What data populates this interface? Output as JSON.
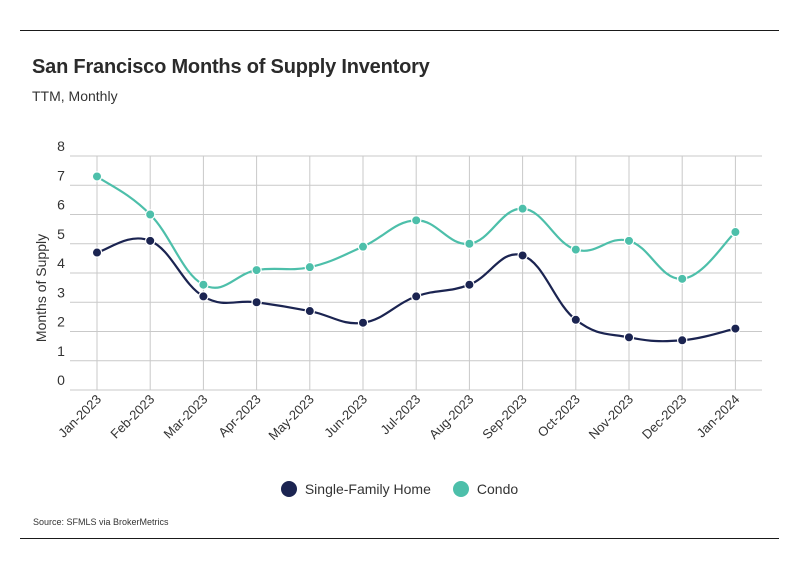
{
  "title": "San Francisco Months of Supply Inventory",
  "subtitle": "TTM, Monthly",
  "source": "Source:  SFMLS via BrokerMetrics",
  "colors": {
    "single_family": "#1b2451",
    "condo": "#4dbfaa",
    "grid": "#c9c9c9"
  },
  "chart_data": {
    "type": "line",
    "ylabel": "Months of Supply",
    "xlabel": "",
    "ylim": [
      0,
      8
    ],
    "yticks": [
      0,
      1,
      2,
      3,
      4,
      5,
      6,
      7,
      8
    ],
    "grid": true,
    "legend_position": "bottom-center",
    "smooth": true,
    "categories": [
      "Jan-2023",
      "Feb-2023",
      "Mar-2023",
      "Apr-2023",
      "May-2023",
      "Jun-2023",
      "Jul-2023",
      "Aug-2023",
      "Sep-2023",
      "Oct-2023",
      "Nov-2023",
      "Dec-2023",
      "Jan-2024"
    ],
    "series": [
      {
        "name": "Single-Family Home",
        "color": "#1b2451",
        "values": [
          4.7,
          5.1,
          3.2,
          3.0,
          2.7,
          2.3,
          3.2,
          3.6,
          4.6,
          2.4,
          1.8,
          1.7,
          2.1
        ]
      },
      {
        "name": "Condo",
        "color": "#4dbfaa",
        "values": [
          7.3,
          6.0,
          3.6,
          4.1,
          4.2,
          4.9,
          5.8,
          5.0,
          6.2,
          4.8,
          5.1,
          3.8,
          5.4
        ]
      }
    ]
  }
}
